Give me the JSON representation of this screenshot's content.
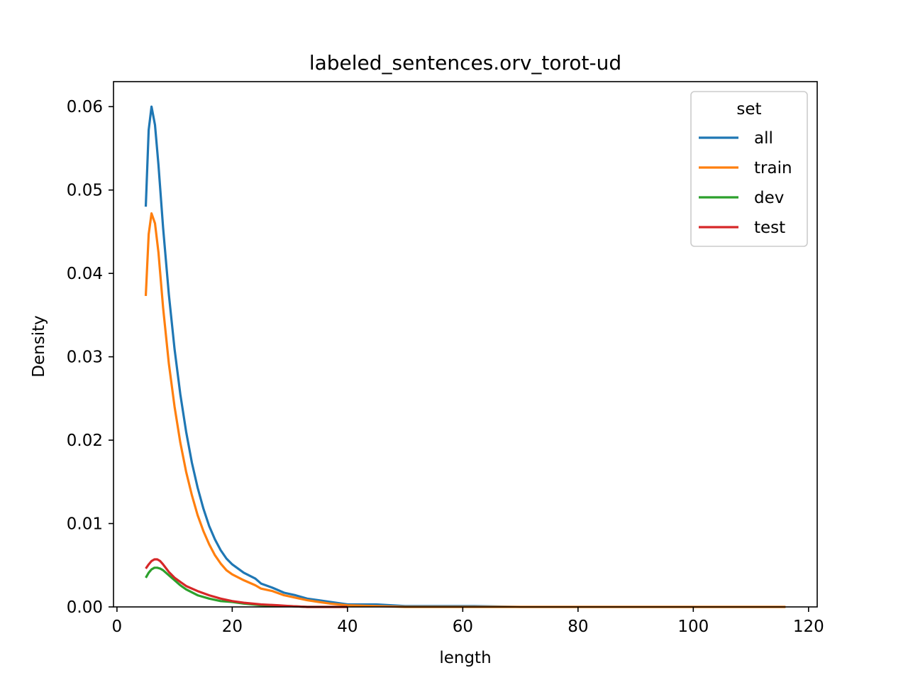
{
  "chart_data": {
    "type": "line",
    "title": "labeled_sentences.orv_torot-ud",
    "xlabel": "length",
    "ylabel": "Density",
    "xlim": [
      -0.6,
      121.5
    ],
    "ylim": [
      0,
      0.063
    ],
    "xticks": [
      0,
      20,
      40,
      60,
      80,
      100,
      120
    ],
    "xtick_labels": [
      "0",
      "20",
      "40",
      "60",
      "80",
      "100",
      "120"
    ],
    "yticks": [
      0,
      0.01,
      0.02,
      0.03,
      0.04,
      0.05,
      0.06
    ],
    "ytick_labels": [
      "0.00",
      "0.01",
      "0.02",
      "0.03",
      "0.04",
      "0.05",
      "0.06"
    ],
    "grid": false,
    "legend": {
      "title": "set",
      "placement": "upper-right"
    },
    "series": [
      {
        "name": "all",
        "color": "#1f77b4",
        "x": [
          5,
          5.5,
          6,
          6.6,
          7.2,
          8,
          9,
          10,
          11,
          12,
          13,
          14,
          15,
          16,
          17,
          18,
          19,
          20,
          22,
          24,
          25,
          27,
          29,
          31,
          33,
          35,
          37,
          40,
          42,
          45,
          50,
          55,
          58,
          62,
          70,
          80,
          90,
          100,
          110,
          116
        ],
        "y": [
          0.048,
          0.0572,
          0.06,
          0.0578,
          0.053,
          0.0455,
          0.0375,
          0.0309,
          0.0255,
          0.021,
          0.0173,
          0.0143,
          0.0118,
          0.0097,
          0.0081,
          0.0068,
          0.0058,
          0.0051,
          0.0041,
          0.0034,
          0.0028,
          0.0023,
          0.0017,
          0.0014,
          0.001,
          0.0008,
          0.0006,
          0.0003,
          0.0003,
          0.0003,
          0.0001,
          0.0001,
          0.0001,
          0.0001,
          0.0,
          0.0,
          0.0,
          0.0,
          0.0,
          0.0
        ]
      },
      {
        "name": "train",
        "color": "#ff7f0e",
        "x": [
          5,
          5.5,
          6,
          6.6,
          7.2,
          8,
          9,
          10,
          11,
          12,
          13,
          14,
          15,
          16,
          17,
          18,
          19,
          20,
          22,
          24,
          25,
          27,
          29,
          31,
          33,
          35,
          37,
          40,
          45,
          50,
          60,
          70,
          80,
          90,
          100,
          110,
          116
        ],
        "y": [
          0.0373,
          0.0447,
          0.0472,
          0.046,
          0.0425,
          0.0359,
          0.0292,
          0.024,
          0.0197,
          0.0162,
          0.0134,
          0.011,
          0.0091,
          0.0075,
          0.0062,
          0.0052,
          0.0044,
          0.0039,
          0.0032,
          0.0026,
          0.0022,
          0.0019,
          0.0014,
          0.0011,
          0.0008,
          0.0006,
          0.0004,
          0.0002,
          0.0001,
          0.0,
          0.0,
          0.0,
          0.0,
          0.0,
          0.0,
          0.0,
          0.0
        ]
      },
      {
        "name": "dev",
        "color": "#2ca02c",
        "x": [
          5,
          5.5,
          6,
          6.5,
          7,
          7.5,
          8,
          9,
          10,
          11,
          12,
          14,
          16,
          18,
          20,
          22,
          25,
          28,
          30,
          33,
          36,
          40
        ],
        "y": [
          0.0035,
          0.0041,
          0.0045,
          0.0047,
          0.0047,
          0.0046,
          0.0044,
          0.0038,
          0.0032,
          0.0026,
          0.0021,
          0.0014,
          0.001,
          0.0007,
          0.0006,
          0.0004,
          0.0002,
          0.0001,
          0.0001,
          0.0,
          0.0,
          0.0
        ]
      },
      {
        "name": "test",
        "color": "#d62728",
        "x": [
          5,
          5.5,
          6,
          6.5,
          7,
          7.5,
          8,
          9,
          10,
          11,
          12,
          14,
          16,
          18,
          20,
          22,
          25,
          28,
          30,
          33,
          36,
          40
        ],
        "y": [
          0.0046,
          0.0051,
          0.0055,
          0.0057,
          0.0057,
          0.0055,
          0.0051,
          0.0042,
          0.0035,
          0.003,
          0.0025,
          0.0019,
          0.0014,
          0.001,
          0.0007,
          0.0005,
          0.0003,
          0.0002,
          0.0001,
          0.0,
          0.0,
          0.0
        ]
      }
    ]
  }
}
